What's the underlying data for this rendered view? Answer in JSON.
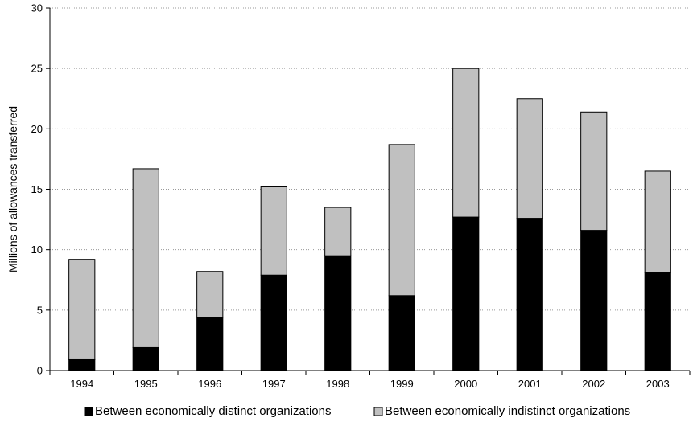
{
  "chart_data": {
    "type": "bar",
    "stacked": true,
    "categories": [
      "1994",
      "1995",
      "1996",
      "1997",
      "1998",
      "1999",
      "2000",
      "2001",
      "2002",
      "2003"
    ],
    "series": [
      {
        "name": "Between economically distinct organizations",
        "color": "#000000",
        "values": [
          0.9,
          1.9,
          4.4,
          7.9,
          9.5,
          6.2,
          12.7,
          12.6,
          11.6,
          8.1
        ]
      },
      {
        "name": "Between economically indistinct organizations",
        "color": "#c0c0c0",
        "values": [
          8.3,
          14.8,
          3.8,
          7.3,
          4.0,
          12.5,
          12.3,
          9.9,
          9.8,
          8.4
        ]
      }
    ],
    "title": "",
    "xlabel": "",
    "ylabel": "Millions of allowances transferred",
    "ylim": [
      0,
      30
    ],
    "yticks": [
      0,
      5,
      10,
      15,
      20,
      25,
      30
    ],
    "grid": true,
    "legend_position": "bottom"
  }
}
